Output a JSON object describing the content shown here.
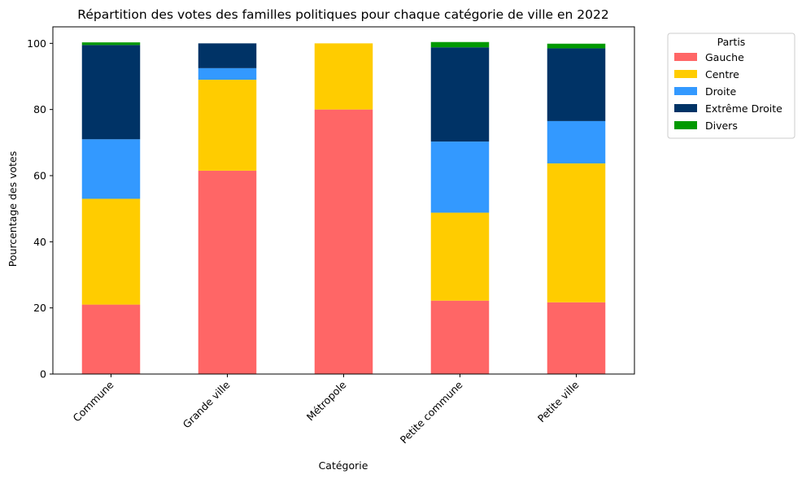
{
  "chart_data": {
    "type": "bar",
    "stacked": true,
    "title": "Répartition des votes des familles politiques pour chaque catégorie de ville en 2022",
    "xlabel": "Catégorie",
    "ylabel": "Pourcentage des votes",
    "ylim": [
      0,
      105
    ],
    "yticks": [
      0,
      20,
      40,
      60,
      80,
      100
    ],
    "grid": false,
    "categories": [
      "Commune",
      "Grande ville",
      "Métropole",
      "Petite commune",
      "Petite ville"
    ],
    "series": [
      {
        "name": "Gauche",
        "color": "#ff6666",
        "values": [
          21.0,
          61.5,
          80.0,
          22.2,
          21.7
        ]
      },
      {
        "name": "Centre",
        "color": "#ffcc00",
        "values": [
          32.0,
          27.5,
          20.0,
          26.6,
          42.0
        ]
      },
      {
        "name": "Droite",
        "color": "#3399ff",
        "values": [
          18.0,
          3.5,
          0.0,
          21.5,
          12.8
        ]
      },
      {
        "name": "Extrême Droite",
        "color": "#003366",
        "values": [
          28.5,
          7.5,
          0.0,
          28.5,
          22.0
        ]
      },
      {
        "name": "Divers",
        "color": "#009900",
        "values": [
          0.8,
          0.0,
          0.0,
          1.6,
          1.4
        ]
      }
    ],
    "legend": {
      "title": "Partis",
      "placement": "outside-right"
    }
  }
}
